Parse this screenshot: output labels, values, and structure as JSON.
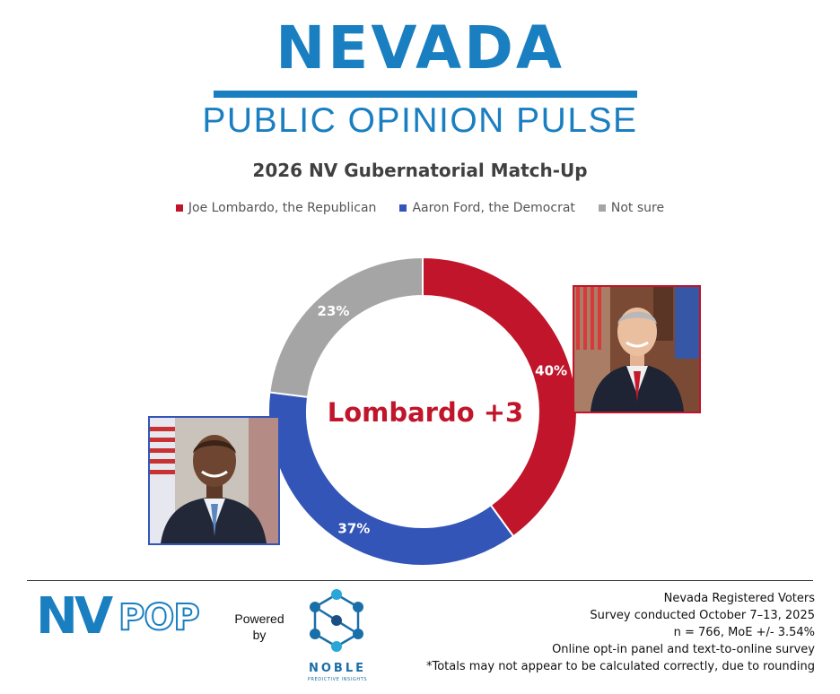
{
  "header": {
    "title": "NEVADA",
    "subtitle": "PUBLIC OPINION PULSE"
  },
  "chart_data": {
    "type": "pie",
    "variant": "donut",
    "title": "2026 NV Gubernatorial Match-Up",
    "center_label": "Lombardo +3",
    "center_label_color": "#c0152a",
    "legend_position": "top",
    "slices": [
      {
        "name": "Joe Lombardo, the Republican",
        "value": 40,
        "label": "40%",
        "color": "#c0152a"
      },
      {
        "name": "Aaron Ford, the Democrat",
        "value": 37,
        "label": "37%",
        "color": "#3355b8"
      },
      {
        "name": "Not sure",
        "value": 23,
        "label": "23%",
        "color": "#a5a5a5"
      }
    ]
  },
  "footer": {
    "logo_text": "NVPOP",
    "powered_by": "Powered by",
    "partner_name": "NOBLE",
    "partner_tagline": "PREDICTIVE INSIGHTS",
    "notes": [
      "Nevada Registered Voters",
      "Survey conducted October 7–13, 2025",
      "n = 766, MoE +/- 3.54%",
      "Online opt-in panel and text-to-online survey",
      "*Totals may not appear to be calculated correctly, due to rounding"
    ]
  },
  "colors": {
    "brand_blue": "#1a7fc1",
    "republican_red": "#c0152a",
    "democrat_blue": "#3355b8",
    "not_sure_gray": "#a5a5a5"
  }
}
